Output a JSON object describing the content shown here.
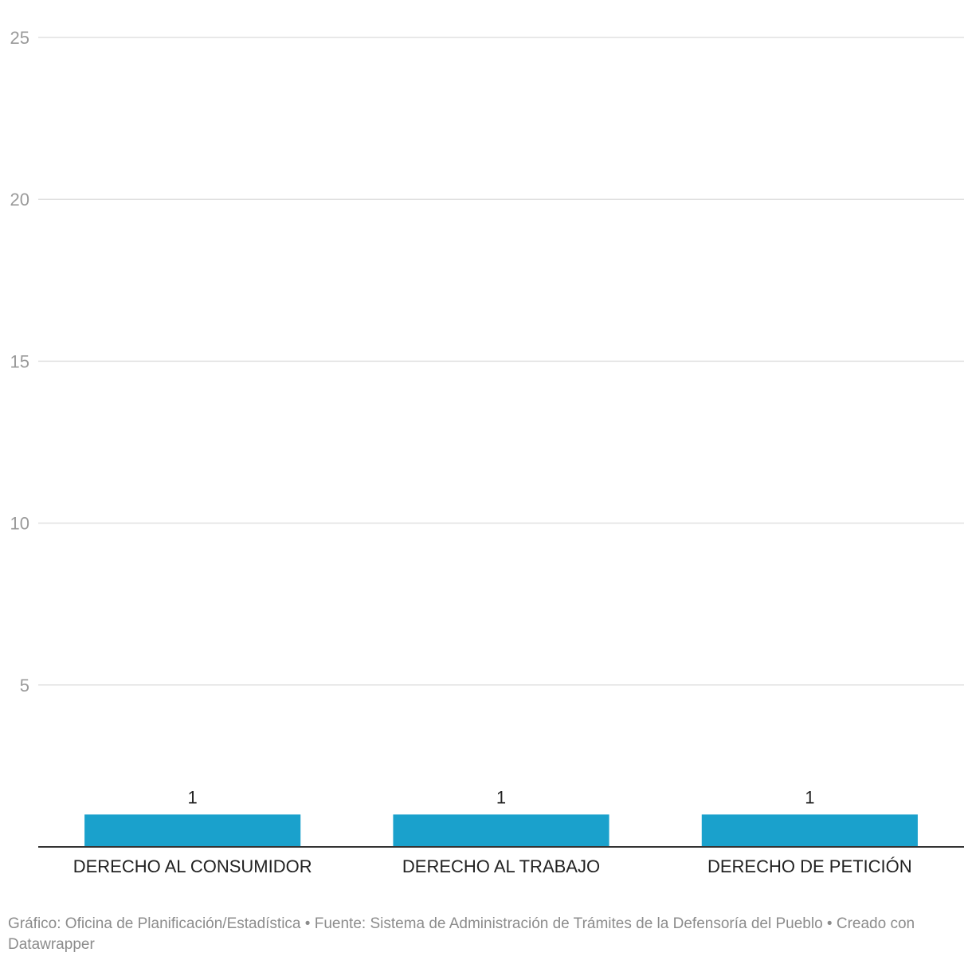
{
  "chart_data": {
    "type": "bar",
    "categories": [
      "DERECHO AL CONSUMIDOR",
      "DERECHO AL TRABAJO",
      "DERECHO DE PETICIÓN"
    ],
    "values": [
      1,
      1,
      1
    ],
    "data_labels": [
      "1",
      "1",
      "1"
    ],
    "ylim": [
      0,
      25
    ],
    "yticks": [
      5,
      10,
      15,
      20,
      25
    ],
    "grid": true,
    "colors": {
      "bar": "#1aa1cc",
      "grid": "#e0e0e0",
      "axis": "#333333"
    }
  },
  "footer": {
    "credit": "Gráfico: Oficina de Planificación/Estadística",
    "separator": " • ",
    "source": "Fuente: Sistema de Administración de Trámites de la Defensoría del Pueblo",
    "separator2": " • ",
    "tool": "Creado con Datawrapper"
  }
}
